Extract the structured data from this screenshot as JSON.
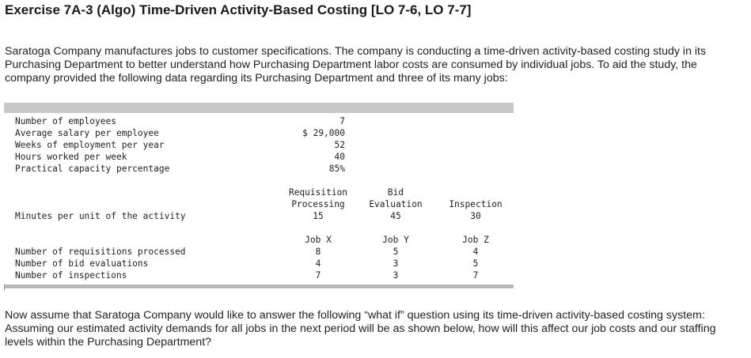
{
  "title": "Exercise 7A-3 (Algo) Time-Driven Activity-Based Costing [LO 7-6, LO 7-7]",
  "intro": "Saratoga Company manufactures jobs to customer specifications. The company is conducting a time-driven activity-based costing study in its Purchasing Department to better understand how Purchasing Department labor costs are consumed by individual jobs. To aid the study, the company provided the following data regarding its Purchasing Department and three of its many jobs:",
  "department": [
    {
      "label": "Number of employees",
      "value": "7"
    },
    {
      "label": "Average salary per employee",
      "value": "$ 29,000"
    },
    {
      "label": "Weeks of employment per year",
      "value": "52"
    },
    {
      "label": "Hours worked per week",
      "value": "40"
    },
    {
      "label": "Practical capacity percentage",
      "value": "85%"
    }
  ],
  "activities": {
    "headers": [
      {
        "line1": "Requisition",
        "line2": "Processing"
      },
      {
        "line1": "Bid",
        "line2": "Evaluation"
      },
      {
        "line1": "",
        "line2": "Inspection"
      }
    ],
    "row_label": "Minutes per unit of the activity",
    "minutes": [
      "15",
      "45",
      "30"
    ]
  },
  "jobs": {
    "headers": [
      "Job X",
      "Job Y",
      "Job Z"
    ],
    "rows": [
      {
        "label": "Number of requisitions processed",
        "values": [
          "8",
          "5",
          "4"
        ]
      },
      {
        "label": "Number of bid evaluations",
        "values": [
          "4",
          "3",
          "5"
        ]
      },
      {
        "label": "Number of inspections",
        "values": [
          "7",
          "3",
          "7"
        ]
      }
    ]
  },
  "followup": "Now assume that Saratoga Company would like to answer the following “what if” question using its time-driven activity-based costing system: Assuming our estimated activity demands for all jobs in the next period will be as shown below, how will this affect our job costs and our staffing levels within the Purchasing Department?"
}
